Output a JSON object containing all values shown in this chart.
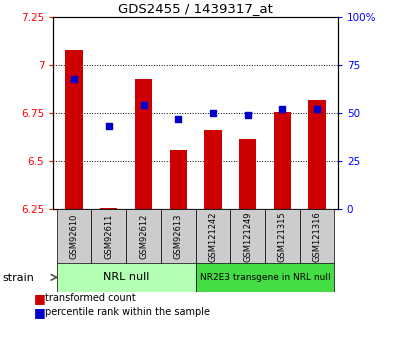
{
  "title": "GDS2455 / 1439317_at",
  "samples": [
    "GSM92610",
    "GSM92611",
    "GSM92612",
    "GSM92613",
    "GSM121242",
    "GSM121249",
    "GSM121315",
    "GSM121316"
  ],
  "bar_values": [
    7.08,
    6.255,
    6.93,
    6.555,
    6.66,
    6.615,
    6.755,
    6.82
  ],
  "percentile_values": [
    68,
    43,
    54,
    47,
    50,
    49,
    52,
    52
  ],
  "bar_color": "#cc0000",
  "dot_color": "#0000cc",
  "ylim_left": [
    6.25,
    7.25
  ],
  "ylim_right": [
    0,
    100
  ],
  "yticks_left": [
    6.25,
    6.5,
    6.75,
    7.0,
    7.25
  ],
  "yticks_right": [
    0,
    25,
    50,
    75,
    100
  ],
  "ytick_labels_left": [
    "6.25",
    "6.5",
    "6.75",
    "7",
    "7.25"
  ],
  "ytick_labels_right": [
    "0",
    "25",
    "50",
    "75",
    "100%"
  ],
  "group1": {
    "label": "NRL null",
    "indices": [
      0,
      1,
      2,
      3
    ],
    "color": "#b3ffb3"
  },
  "group2": {
    "label": "NR2E3 transgene in NRL null",
    "indices": [
      4,
      5,
      6,
      7
    ],
    "color": "#44dd44"
  },
  "strain_label": "strain",
  "legend_bar_label": "transformed count",
  "legend_dot_label": "percentile rank within the sample",
  "bar_width": 0.5,
  "bar_bottom": 6.25,
  "bg_color": "#ffffff"
}
